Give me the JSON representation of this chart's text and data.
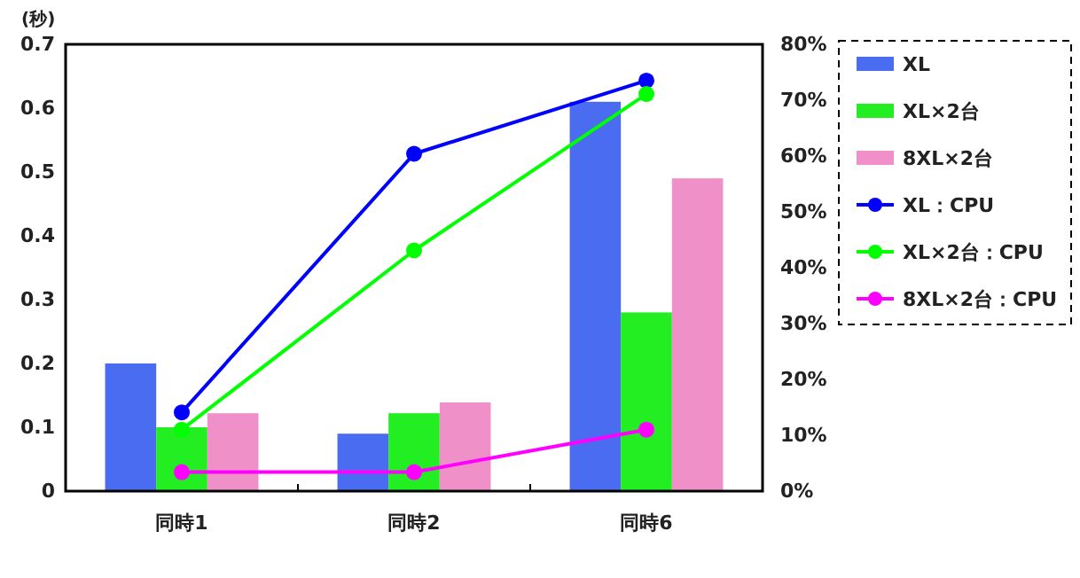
{
  "chart_data": {
    "type": "bar",
    "ylabel": "(秒)",
    "categories": [
      "同時1",
      "同時2",
      "同時6"
    ],
    "series": [
      {
        "name": "XL",
        "color": "#4a6cf0",
        "values": [
          0.2,
          0.09,
          0.61
        ]
      },
      {
        "name": "XL×2台",
        "color": "#22ee22",
        "values": [
          0.1,
          0.122,
          0.28
        ]
      },
      {
        "name": "8XL×2台",
        "color": "#f090c8",
        "values": [
          0.122,
          0.139,
          0.49
        ]
      },
      {
        "name": "XL：CPU",
        "type": "line",
        "axis": "y2",
        "color": "#0000ff",
        "values": [
          14.1,
          60.4,
          73.5
        ]
      },
      {
        "name": "XL×2台：CPU",
        "type": "line",
        "axis": "y2",
        "color": "#00ff00",
        "values": [
          11,
          43.1,
          71.1
        ]
      },
      {
        "name": "8XL×2台：CPU",
        "type": "line",
        "axis": "y2",
        "color": "#ff00ff",
        "values": [
          3.4,
          3.4,
          11
        ]
      }
    ],
    "ylim": [
      0,
      0.7
    ],
    "yticks": [
      0,
      0.1,
      0.2,
      0.3,
      0.4,
      0.5,
      0.6,
      0.7
    ],
    "y2lim": [
      0,
      80
    ],
    "y2ticks": [
      {
        "value": 0,
        "label": "0%"
      },
      {
        "value": 10,
        "label": "10%"
      },
      {
        "value": 20,
        "label": "20%"
      },
      {
        "value": 30,
        "label": "30%"
      },
      {
        "value": 40,
        "label": "40%"
      },
      {
        "value": 50,
        "label": "50%"
      },
      {
        "value": 60,
        "label": "60%"
      },
      {
        "value": 70,
        "label": "70%"
      },
      {
        "value": 80,
        "label": "80%"
      }
    ],
    "marker": "circle",
    "legend": "right",
    "grid": false
  }
}
